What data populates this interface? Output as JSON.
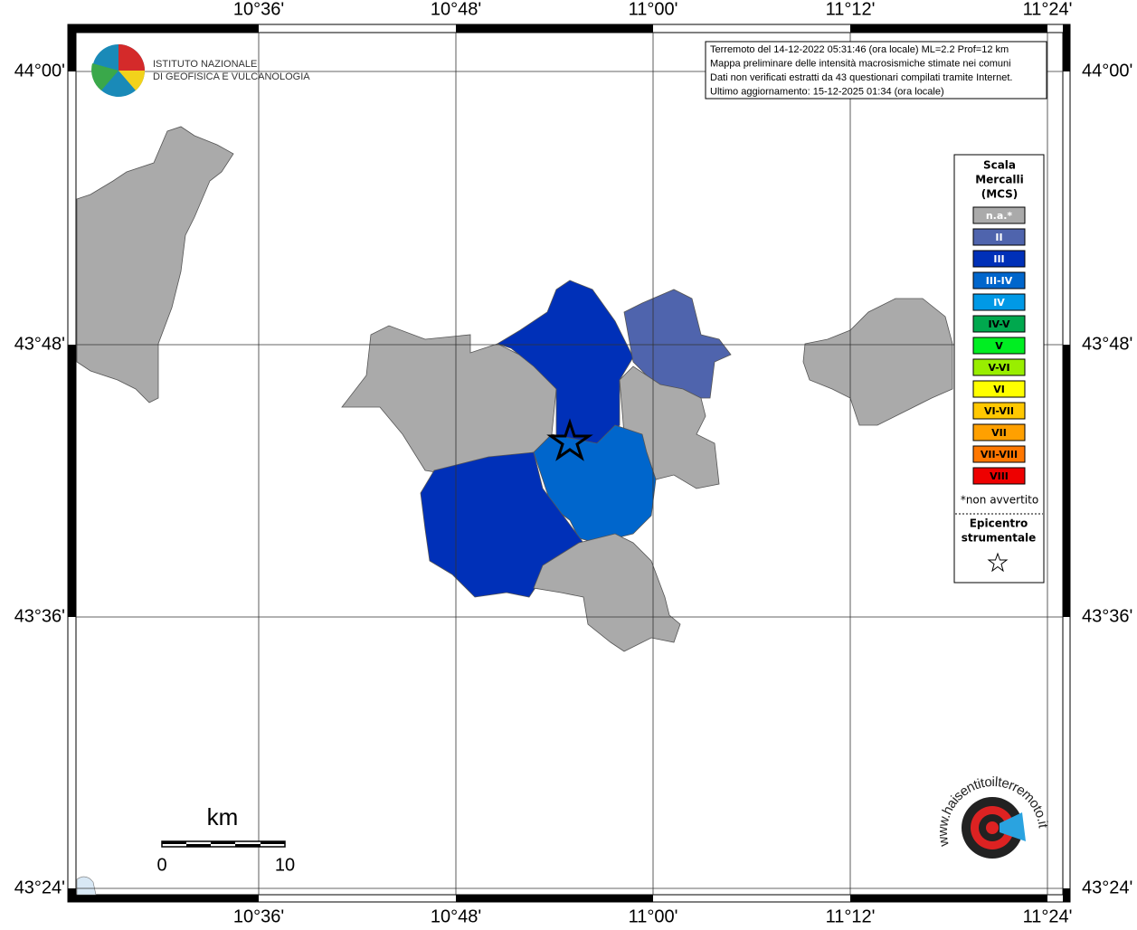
{
  "header": {
    "institute_line1": "ISTITUTO NAZIONALE",
    "institute_line2": "DI GEOFISICA E VULCANOLOGIA"
  },
  "info_box": [
    "Terremoto del 14-12-2022 05:31:46 (ora locale) ML=2.2 Prof=12 km",
    "Mappa preliminare delle intensità macrosismiche stimate nei comuni",
    "Dati non verificati estratti da 43 questionari compilati tramite Internet.",
    "Ultimo aggiornamento: 15-12-2025 01:34 (ora locale)"
  ],
  "longitude_labels": [
    "10°36'",
    "10°48'",
    "11°00'",
    "11°12'",
    "11°24'"
  ],
  "latitude_labels": [
    "44°00'",
    "43°48'",
    "43°36'",
    "43°24'"
  ],
  "legend": {
    "title_lines": [
      "Scala",
      "Mercalli",
      "(MCS)"
    ],
    "entries": [
      {
        "label": "n.a.*",
        "color": "#aaaaaa"
      },
      {
        "label": "II",
        "color": "#4f64ad"
      },
      {
        "label": "III",
        "color": "#0030b8"
      },
      {
        "label": "III-IV",
        "color": "#0066cc"
      },
      {
        "label": "IV",
        "color": "#0099e6"
      },
      {
        "label": "IV-V",
        "color": "#00a84e"
      },
      {
        "label": "V",
        "color": "#00ee22"
      },
      {
        "label": "V-VI",
        "color": "#99ee00"
      },
      {
        "label": "VI",
        "color": "#ffff00"
      },
      {
        "label": "VI-VII",
        "color": "#ffc800"
      },
      {
        "label": "VII",
        "color": "#ffa000"
      },
      {
        "label": "VII-VIII",
        "color": "#ff7700"
      },
      {
        "label": "VIII",
        "color": "#ee0000"
      }
    ],
    "note": "*non avvertito",
    "epicenter_lines": [
      "Epicentro",
      "strumentale"
    ]
  },
  "scale_bar": {
    "unit": "km",
    "start": "0",
    "end": "10"
  },
  "watermark": "www.haisentitoilterremoto.it"
}
